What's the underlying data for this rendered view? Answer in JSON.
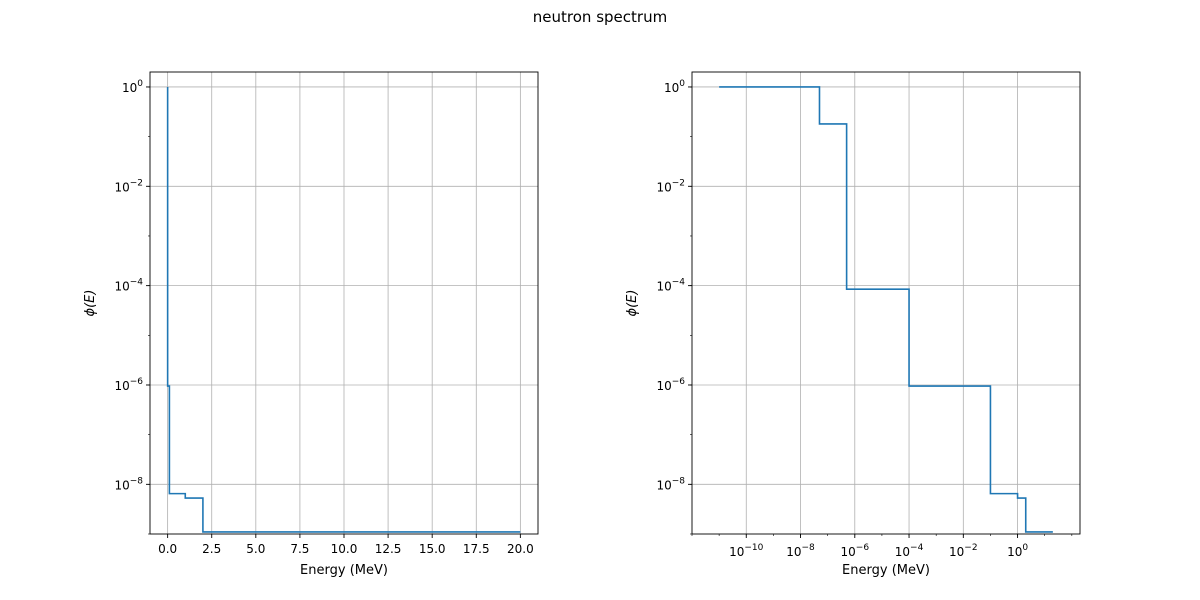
{
  "figure": {
    "title": "neutron spectrum"
  },
  "chart_data": [
    {
      "type": "line",
      "drawstyle": "steps",
      "xscale": "linear",
      "yscale": "log",
      "xlabel": "Energy (MeV)",
      "ylabel": "ϕ(E)",
      "xlim": [
        -1.0,
        21.0
      ],
      "ylim": [
        1e-09,
        2.0
      ],
      "xticks": [
        {
          "value": 0.0,
          "label": "0.0"
        },
        {
          "value": 2.5,
          "label": "2.5"
        },
        {
          "value": 5.0,
          "label": "5.0"
        },
        {
          "value": 7.5,
          "label": "7.5"
        },
        {
          "value": 10.0,
          "label": "10.0"
        },
        {
          "value": 12.5,
          "label": "12.5"
        },
        {
          "value": 15.0,
          "label": "15.0"
        },
        {
          "value": 17.5,
          "label": "17.5"
        },
        {
          "value": 20.0,
          "label": "20.0"
        }
      ],
      "yticks": [
        {
          "value": 1,
          "base": "10",
          "exp": "0"
        },
        {
          "value": 0.01,
          "base": "10",
          "exp": "−2"
        },
        {
          "value": 0.0001,
          "base": "10",
          "exp": "−4"
        },
        {
          "value": 1e-06,
          "base": "10",
          "exp": "−6"
        },
        {
          "value": 1e-08,
          "base": "10",
          "exp": "−8"
        }
      ],
      "grid": true,
      "series": [
        {
          "color": "#1f77b4",
          "x": [
            1e-11,
            5e-08,
            5e-07,
            0.0001,
            0.1,
            1.0,
            2.0,
            20.0
          ],
          "y": [
            1.0,
            0.18,
            8.5e-05,
            9.5e-07,
            6.5e-09,
            5.3e-09,
            1.1e-09,
            1.1e-09
          ]
        }
      ]
    },
    {
      "type": "line",
      "drawstyle": "steps",
      "xscale": "log",
      "yscale": "log",
      "xlabel": "Energy (MeV)",
      "ylabel": "ϕ(E)",
      "xlim": [
        1e-12,
        200
      ],
      "ylim": [
        1e-09,
        2.0
      ],
      "xticks": [
        {
          "value": 1e-10,
          "base": "10",
          "exp": "−10"
        },
        {
          "value": 1e-08,
          "base": "10",
          "exp": "−8"
        },
        {
          "value": 1e-06,
          "base": "10",
          "exp": "−6"
        },
        {
          "value": 0.0001,
          "base": "10",
          "exp": "−4"
        },
        {
          "value": 0.01,
          "base": "10",
          "exp": "−2"
        },
        {
          "value": 1,
          "base": "10",
          "exp": "0"
        }
      ],
      "yticks": [
        {
          "value": 1,
          "base": "10",
          "exp": "0"
        },
        {
          "value": 0.01,
          "base": "10",
          "exp": "−2"
        },
        {
          "value": 0.0001,
          "base": "10",
          "exp": "−4"
        },
        {
          "value": 1e-06,
          "base": "10",
          "exp": "−6"
        },
        {
          "value": 1e-08,
          "base": "10",
          "exp": "−8"
        }
      ],
      "grid": true,
      "series": [
        {
          "color": "#1f77b4",
          "x": [
            1e-11,
            5e-08,
            5e-07,
            0.0001,
            0.1,
            1.0,
            2.0,
            20.0
          ],
          "y": [
            1.0,
            0.18,
            8.5e-05,
            9.5e-07,
            6.5e-09,
            5.3e-09,
            1.1e-09,
            1.1e-09
          ]
        }
      ]
    }
  ]
}
